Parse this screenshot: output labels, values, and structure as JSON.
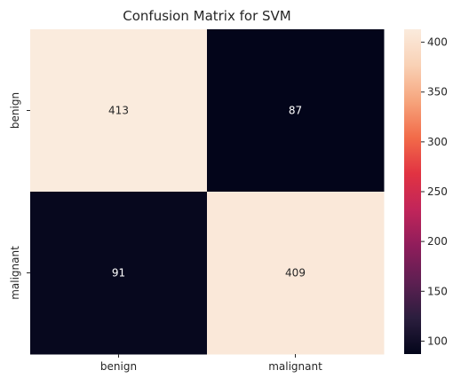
{
  "chart_data": {
    "type": "heatmap",
    "title": "Confusion Matrix for SVM",
    "xlabel": "",
    "ylabel": "",
    "x_categories": [
      "benign",
      "malignant"
    ],
    "y_categories": [
      "benign",
      "malignant"
    ],
    "values": [
      [
        413,
        87
      ],
      [
        91,
        409
      ]
    ],
    "annotation_colors": {
      "on_light": "#262626",
      "on_dark": "#ffffff"
    },
    "colorbar": {
      "range": [
        87,
        413
      ],
      "ticks": [
        100,
        150,
        200,
        250,
        300,
        350,
        400
      ],
      "tick_labels": [
        "100",
        "150",
        "200",
        "250",
        "300",
        "350",
        "400"
      ]
    },
    "colormap": "rocket",
    "colormap_stops": [
      "#03051a",
      "#2b1e3e",
      "#5e1f52",
      "#8f1d5b",
      "#c1255a",
      "#e13342",
      "#f26b49",
      "#f6a47c",
      "#f9d1b5",
      "#faebdd"
    ],
    "grid": false
  }
}
